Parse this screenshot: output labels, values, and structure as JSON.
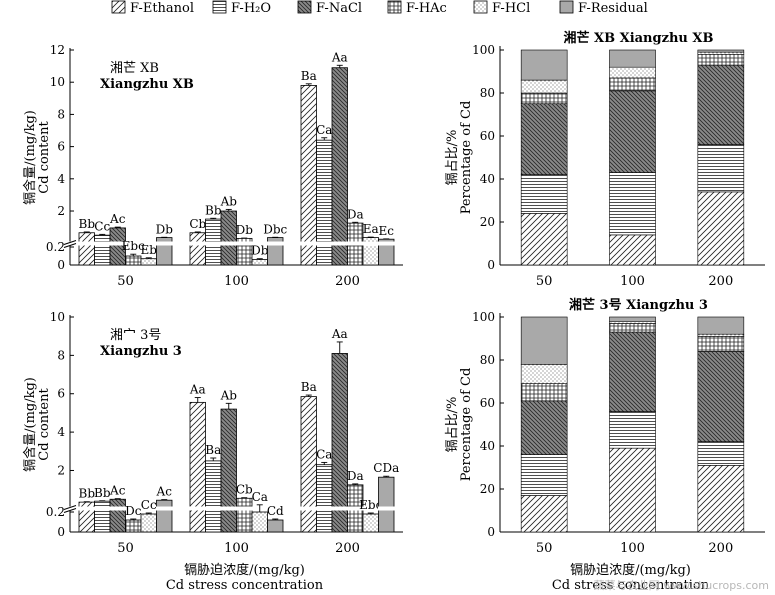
{
  "legend": {
    "items": [
      {
        "label": "F-Ethanol",
        "pattern": "diag-fwd"
      },
      {
        "label": "F-H₂O",
        "pattern": "hstripe"
      },
      {
        "label": "F-NaCl",
        "pattern": "diag-back-dark"
      },
      {
        "label": "F-HAc",
        "pattern": "grid"
      },
      {
        "label": "F-HCl",
        "pattern": "dots"
      },
      {
        "label": "F-Residual",
        "pattern": "gray"
      }
    ]
  },
  "chart_data": [
    {
      "type": "bar",
      "title": "湘芒 XB",
      "subtitle": "Xiangzhu XB",
      "ylabel_cn": "镉含量/(mg/kg)",
      "ylabel_en": "Cd content",
      "categories": [
        "50",
        "100",
        "200"
      ],
      "ylim": [
        0,
        12
      ],
      "yticks": [
        "12",
        "10",
        "8",
        "6",
        "4",
        "2",
        "0.2",
        "0"
      ],
      "broken_axis": true,
      "series": [
        {
          "name": "F-Ethanol",
          "values": [
            0.65,
            0.65,
            9.8
          ],
          "errors": [
            0.05,
            0.05,
            0.1
          ],
          "labels": [
            "Bb",
            "Cb",
            "Ba"
          ]
        },
        {
          "name": "F-H₂O",
          "values": [
            0.5,
            1.5,
            6.4
          ],
          "errors": [
            0.05,
            0.05,
            0.15
          ],
          "labels": [
            "Cc",
            "Bb",
            "Ca"
          ]
        },
        {
          "name": "F-NaCl",
          "values": [
            0.95,
            2.0,
            10.9
          ],
          "errors": [
            0.05,
            0.1,
            0.15
          ],
          "labels": [
            "Ac",
            "Ab",
            "Aa"
          ]
        },
        {
          "name": "F-HAc",
          "values": [
            0.1,
            0.3,
            1.25
          ],
          "errors": [
            0.02,
            0.02,
            0.05
          ],
          "labels": [
            "Ebc",
            "Db",
            "Da"
          ]
        },
        {
          "name": "F-HCl",
          "values": [
            0.07,
            0.06,
            0.35
          ],
          "errors": [
            0.01,
            0.01,
            0.03
          ],
          "labels": [
            "Eb",
            "Db",
            "Ea"
          ]
        },
        {
          "name": "F-Residual",
          "values": [
            0.35,
            0.35,
            0.25
          ],
          "errors": [
            0.02,
            0.02,
            0.02
          ],
          "labels": [
            "Db",
            "Dbc",
            "Ec"
          ]
        }
      ]
    },
    {
      "type": "bar",
      "title": "湘芒 XB Xiangzhu XB",
      "ylabel_cn": "镉占比/%",
      "ylabel_en": "Percentage of Cd",
      "categories": [
        "50",
        "100",
        "200"
      ],
      "ylim": [
        0,
        100
      ],
      "yticks": [
        "100",
        "80",
        "60",
        "40",
        "20",
        "0"
      ],
      "stacked": true,
      "series": [
        {
          "name": "F-Ethanol",
          "values": [
            24,
            14,
            34
          ]
        },
        {
          "name": "F-H₂O",
          "values": [
            18,
            29,
            22
          ]
        },
        {
          "name": "F-NaCl",
          "values": [
            33,
            38,
            37
          ]
        },
        {
          "name": "F-HAc",
          "values": [
            5,
            6,
            5
          ]
        },
        {
          "name": "F-HCl",
          "values": [
            6,
            5,
            1
          ]
        },
        {
          "name": "F-Residual",
          "values": [
            14,
            8,
            1
          ]
        }
      ]
    },
    {
      "type": "bar",
      "title": "湘宀 3号",
      "subtitle": "Xiangzhu 3",
      "ylabel_cn": "镉含量/(mg/kg)",
      "ylabel_en": "Cd content",
      "xlabel_cn": "镉胁迫浓度/(mg/kg)",
      "xlabel_en": "Cd stress concentration",
      "categories": [
        "50",
        "100",
        "200"
      ],
      "ylim": [
        0,
        10
      ],
      "yticks": [
        "10",
        "8",
        "6",
        "4",
        "2",
        "0.2",
        "0"
      ],
      "broken_axis": true,
      "series": [
        {
          "name": "F-Ethanol",
          "values": [
            0.35,
            5.55,
            5.85
          ],
          "errors": [
            0.02,
            0.25,
            0.08
          ],
          "labels": [
            "Bb",
            "Aa",
            "Ba"
          ]
        },
        {
          "name": "F-H₂O",
          "values": [
            0.4,
            2.5,
            2.3
          ],
          "errors": [
            0.02,
            0.15,
            0.12
          ],
          "labels": [
            "Bb",
            "Ba",
            "Ca"
          ]
        },
        {
          "name": "F-NaCl",
          "values": [
            0.5,
            5.2,
            8.1
          ],
          "errors": [
            0.03,
            0.3,
            0.6
          ],
          "labels": [
            "Ac",
            "Ab",
            "Aa"
          ]
        },
        {
          "name": "F-HAc",
          "values": [
            0.12,
            0.55,
            1.25
          ],
          "errors": [
            0.01,
            0.03,
            0.05
          ],
          "labels": [
            "Dc",
            "Cb",
            "Da"
          ]
        },
        {
          "name": "F-HCl",
          "values": [
            0.18,
            0.2,
            0.18
          ],
          "errors": [
            0.01,
            0.01,
            0.01
          ],
          "labels": [
            "Cc",
            "Ca",
            "Ebc"
          ]
        },
        {
          "name": "F-Residual",
          "values": [
            0.45,
            0.12,
            1.65
          ],
          "errors": [
            0.03,
            0.01,
            0.05
          ],
          "labels": [
            "Ac",
            "Cd",
            "CDa"
          ]
        }
      ]
    },
    {
      "type": "bar",
      "title": "湘芒 3号 Xiangzhu 3",
      "ylabel_cn": "镉占比/%",
      "ylabel_en": "Percentage of Cd",
      "xlabel_cn": "镉胁迫浓度/(mg/kg)",
      "xlabel_en": "Cd stress concentration",
      "categories": [
        "50",
        "100",
        "200"
      ],
      "ylim": [
        0,
        100
      ],
      "yticks": [
        "100",
        "80",
        "60",
        "40",
        "20",
        "0"
      ],
      "stacked": true,
      "series": [
        {
          "name": "F-Ethanol",
          "values": [
            17,
            39,
            31
          ]
        },
        {
          "name": "F-H₂O",
          "values": [
            19,
            17,
            11
          ]
        },
        {
          "name": "F-NaCl",
          "values": [
            25,
            37,
            42
          ]
        },
        {
          "name": "F-HAc",
          "values": [
            8,
            4,
            7
          ]
        },
        {
          "name": "F-HCl",
          "values": [
            9,
            1,
            1
          ]
        },
        {
          "name": "F-Residual",
          "values": [
            22,
            2,
            8
          ]
        }
      ]
    }
  ],
  "watermark": "蔬菜与农业网 www.shucrops.com"
}
